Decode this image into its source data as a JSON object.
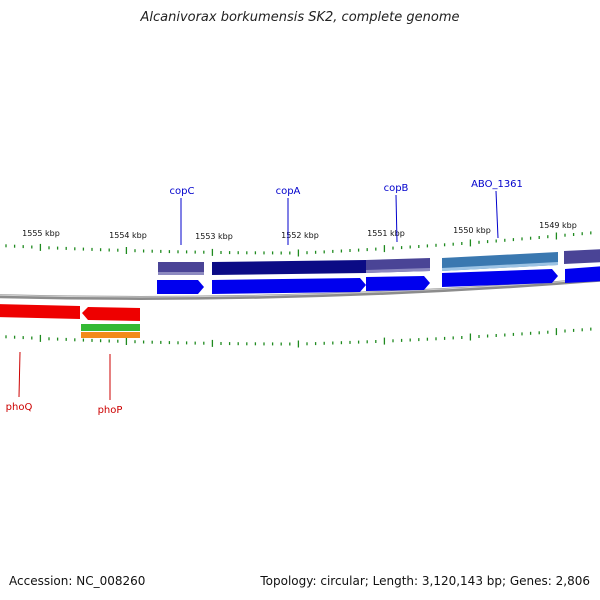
{
  "title": "Alcanivorax borkumensis SK2, complete genome",
  "footer": {
    "accession": "Accession: NC_008260",
    "summary": "Topology: circular; Length: 3,120,143 bp; Genes: 2,806"
  },
  "colors": {
    "background": "#ffffff",
    "backbone": "#8c8c8c",
    "ticks": "#1f8a1f",
    "forward_cds": "#0000ee",
    "reverse_cds": "#ee0000",
    "forward_label": "#0000cc",
    "reverse_label": "#cc0000",
    "cog_navy": "#0b0b85",
    "cog_slate": "#4a4496",
    "cog_steel": "#3a78b0",
    "cog_green": "#34b934",
    "cog_orange": "#f28a1a"
  },
  "scale_labels": [
    "1555 kbp",
    "1554 kbp",
    "1553 kbp",
    "1552 kbp",
    "1551 kbp",
    "1550 kbp",
    "1549 kbp"
  ],
  "genes": [
    {
      "name": "copC",
      "strand": "forward"
    },
    {
      "name": "copA",
      "strand": "forward"
    },
    {
      "name": "copB",
      "strand": "forward"
    },
    {
      "name": "ABO_1361",
      "strand": "forward"
    },
    {
      "name": "phoQ",
      "strand": "reverse"
    },
    {
      "name": "phoP",
      "strand": "reverse"
    }
  ]
}
